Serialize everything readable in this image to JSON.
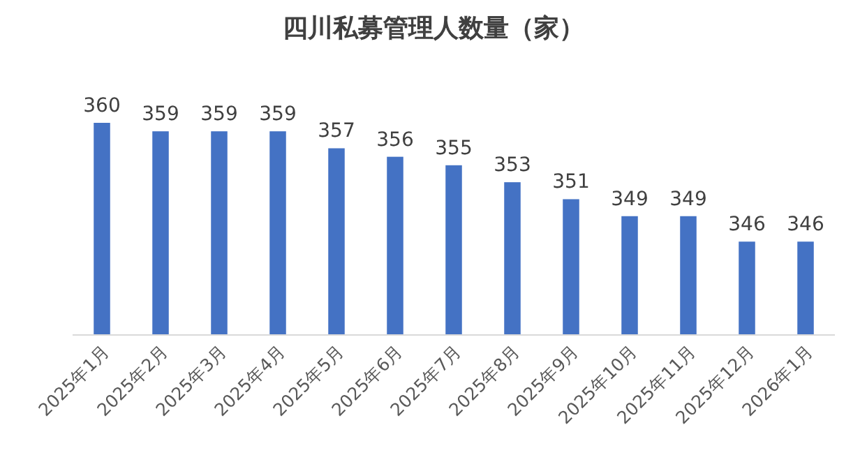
{
  "chart_data": {
    "type": "bar",
    "title": "四川私募管理人数量（家）",
    "categories": [
      "2025年1月",
      "2025年2月",
      "2025年3月",
      "2025年4月",
      "2025年5月",
      "2025年6月",
      "2025年7月",
      "2025年8月",
      "2025年9月",
      "2025年10月",
      "2025年11月",
      "2025年12月",
      "2026年1月"
    ],
    "values": [
      360,
      359,
      359,
      359,
      357,
      356,
      355,
      353,
      351,
      349,
      349,
      346,
      346
    ],
    "color": "#4472c4",
    "ylim": [
      335,
      360
    ],
    "tick_labels": "x",
    "data_labels": true
  }
}
